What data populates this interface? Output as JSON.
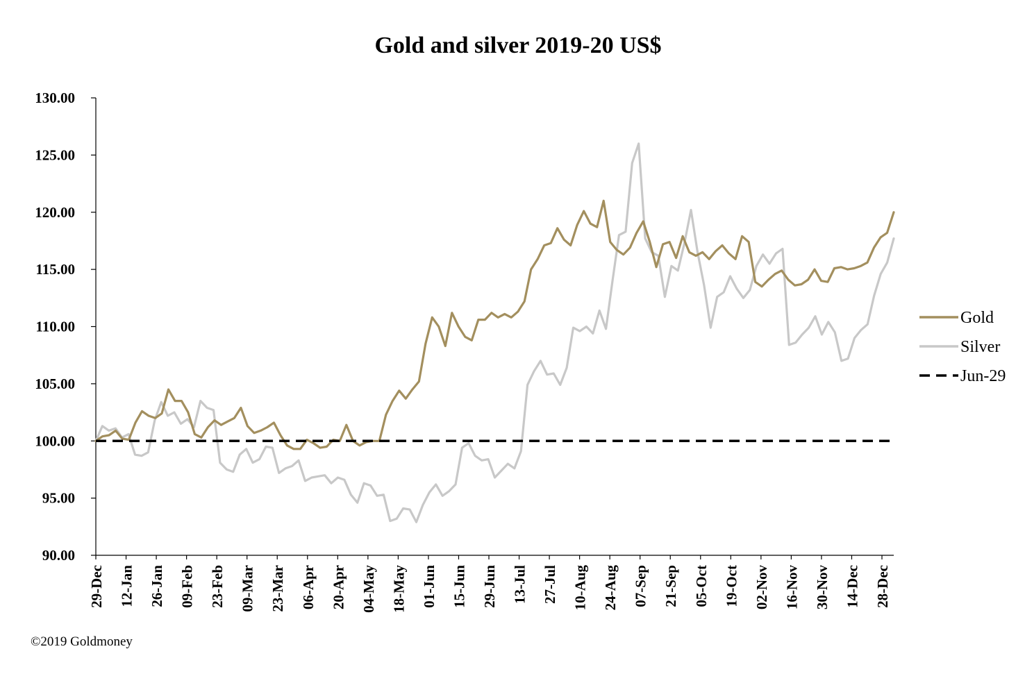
{
  "chart_data": {
    "type": "line",
    "title": "Gold and silver 2019-20  US$",
    "xlabel": "",
    "ylabel": "",
    "ylim": [
      90,
      130
    ],
    "yticks": [
      "90.00",
      "95.00",
      "100.00",
      "105.00",
      "110.00",
      "115.00",
      "120.00",
      "125.00",
      "130.00"
    ],
    "xticks": [
      "29-Dec",
      "12-Jan",
      "26-Jan",
      "09-Feb",
      "23-Feb",
      "09-Mar",
      "23-Mar",
      "06-Apr",
      "20-Apr",
      "04-May",
      "18-May",
      "01-Jun",
      "15-Jun",
      "29-Jun",
      "13-Jul",
      "27-Jul",
      "10-Aug",
      "24-Aug",
      "07-Sep",
      "21-Sep",
      "05-Oct",
      "19-Oct",
      "02-Nov",
      "16-Nov",
      "30-Nov",
      "14-Dec",
      "28-Dec"
    ],
    "grid": false,
    "legend_position": "right",
    "series": [
      {
        "name": "Gold",
        "color": "#a38f5e",
        "values": [
          100.0,
          100.4,
          100.5,
          100.9,
          100.2,
          100.1,
          101.6,
          102.6,
          102.2,
          102.0,
          102.4,
          104.5,
          103.5,
          103.5,
          102.5,
          100.6,
          100.3,
          101.2,
          101.8,
          101.4,
          101.7,
          102.0,
          102.9,
          101.3,
          100.7,
          100.9,
          101.2,
          101.6,
          100.5,
          99.6,
          99.3,
          99.3,
          100.1,
          99.8,
          99.4,
          99.5,
          100.1,
          100.0,
          101.4,
          100.0,
          99.6,
          99.9,
          100.0,
          100.0,
          102.3,
          103.5,
          104.4,
          103.7,
          104.5,
          105.2,
          108.5,
          110.8,
          110.0,
          108.3,
          111.2,
          110.0,
          109.1,
          108.8,
          110.6,
          110.6,
          111.2,
          110.8,
          111.1,
          110.8,
          111.3,
          112.2,
          115.0,
          115.9,
          117.1,
          117.3,
          118.6,
          117.6,
          117.1,
          118.9,
          120.1,
          119.0,
          118.7,
          121.0,
          117.4,
          116.7,
          116.3,
          116.9,
          118.2,
          119.2,
          117.4,
          115.2,
          117.2,
          117.4,
          116.0,
          117.9,
          116.5,
          116.2,
          116.5,
          115.9,
          116.6,
          117.1,
          116.4,
          115.9,
          117.9,
          117.4,
          113.9,
          113.5,
          114.1,
          114.6,
          114.9,
          114.1,
          113.6,
          113.7,
          114.1,
          115.0,
          114.0,
          113.9,
          115.1,
          115.2,
          115.0,
          115.1,
          115.3,
          115.6,
          116.9,
          117.8,
          118.2,
          120.0
        ]
      },
      {
        "name": "Silver",
        "color": "#c8c8c8",
        "values": [
          100.0,
          101.3,
          100.9,
          101.1,
          100.3,
          100.6,
          98.8,
          98.7,
          99.0,
          101.8,
          103.4,
          102.2,
          102.5,
          101.5,
          101.9,
          101.2,
          103.5,
          102.9,
          102.7,
          98.1,
          97.5,
          97.3,
          98.8,
          99.3,
          98.1,
          98.4,
          99.5,
          99.4,
          97.2,
          97.6,
          97.8,
          98.3,
          96.5,
          96.8,
          96.9,
          97.0,
          96.3,
          96.8,
          96.6,
          95.3,
          94.6,
          96.3,
          96.1,
          95.2,
          95.3,
          93.0,
          93.2,
          94.1,
          94.0,
          92.9,
          94.4,
          95.5,
          96.2,
          95.2,
          95.6,
          96.2,
          99.4,
          99.8,
          98.7,
          98.3,
          98.4,
          96.8,
          97.4,
          98.0,
          97.6,
          99.1,
          104.9,
          106.1,
          107.0,
          105.8,
          105.9,
          104.9,
          106.4,
          109.9,
          109.6,
          110.0,
          109.4,
          111.4,
          109.8,
          114.0,
          118.0,
          118.3,
          124.3,
          126.0,
          117.7,
          116.5,
          116.2,
          112.6,
          115.3,
          114.9,
          117.3,
          120.2,
          116.5,
          113.6,
          109.9,
          112.6,
          113.0,
          114.4,
          113.3,
          112.5,
          113.2,
          115.3,
          116.3,
          115.5,
          116.4,
          116.8,
          108.4,
          108.6,
          109.3,
          109.9,
          110.9,
          109.3,
          110.4,
          109.5,
          107.0,
          107.2,
          109.0,
          109.7,
          110.2,
          112.7,
          114.6,
          115.6,
          117.7
        ]
      },
      {
        "name": "Jun-29",
        "color": "#000000",
        "values": [
          100.0,
          100.0
        ]
      }
    ],
    "footer": "©2019 Goldmoney"
  }
}
